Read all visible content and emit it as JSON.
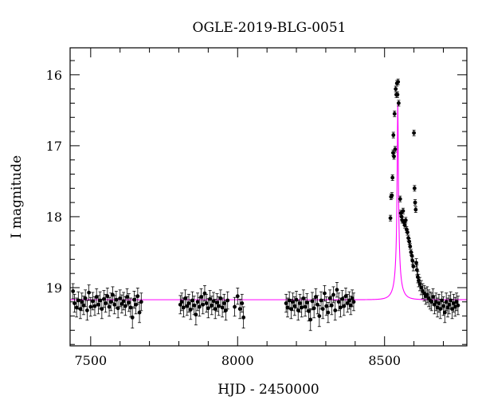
{
  "chart_data": {
    "type": "scatter",
    "title": "OGLE-2019-BLG-0051",
    "xlabel": "HJD - 2450000",
    "ylabel": "I magnitude",
    "xlim": [
      7430,
      8780
    ],
    "ylim": [
      15.62,
      19.82
    ],
    "y_inverted": true,
    "x_ticks": [
      7500,
      8000,
      8500
    ],
    "y_ticks": [
      16,
      17,
      18,
      19
    ],
    "grid": false,
    "model_color": "#ff00ff",
    "point_color": "#000000",
    "model": {
      "baseline_mag": 19.17,
      "peak_mag": 16.4,
      "t0": 8545,
      "tE": 27,
      "u0": 0.0709
    },
    "observations": [
      {
        "t": 7440,
        "mag": 19.05
      },
      {
        "t": 7445,
        "mag": 19.22
      },
      {
        "t": 7452,
        "mag": 19.28
      },
      {
        "t": 7458,
        "mag": 19.18
      },
      {
        "t": 7465,
        "mag": 19.3
      },
      {
        "t": 7470,
        "mag": 19.2
      },
      {
        "t": 7476,
        "mag": 19.25
      },
      {
        "t": 7482,
        "mag": 19.15
      },
      {
        "t": 7488,
        "mag": 19.32
      },
      {
        "t": 7494,
        "mag": 19.07
      },
      {
        "t": 7500,
        "mag": 19.27
      },
      {
        "t": 7507,
        "mag": 19.19
      },
      {
        "t": 7514,
        "mag": 19.26
      },
      {
        "t": 7520,
        "mag": 19.13
      },
      {
        "t": 7526,
        "mag": 19.24
      },
      {
        "t": 7532,
        "mag": 19.18
      },
      {
        "t": 7538,
        "mag": 19.3
      },
      {
        "t": 7545,
        "mag": 19.16
      },
      {
        "t": 7551,
        "mag": 19.22
      },
      {
        "t": 7557,
        "mag": 19.12
      },
      {
        "t": 7563,
        "mag": 19.27
      },
      {
        "t": 7569,
        "mag": 19.2
      },
      {
        "t": 7575,
        "mag": 19.1
      },
      {
        "t": 7581,
        "mag": 19.24
      },
      {
        "t": 7587,
        "mag": 19.17
      },
      {
        "t": 7593,
        "mag": 19.29
      },
      {
        "t": 7600,
        "mag": 19.15
      },
      {
        "t": 7606,
        "mag": 19.23
      },
      {
        "t": 7612,
        "mag": 19.19
      },
      {
        "t": 7618,
        "mag": 19.26
      },
      {
        "t": 7624,
        "mag": 19.13
      },
      {
        "t": 7630,
        "mag": 19.21
      },
      {
        "t": 7636,
        "mag": 19.28
      },
      {
        "t": 7642,
        "mag": 19.42
      },
      {
        "t": 7648,
        "mag": 19.17
      },
      {
        "t": 7654,
        "mag": 19.24
      },
      {
        "t": 7660,
        "mag": 19.12
      },
      {
        "t": 7666,
        "mag": 19.35
      },
      {
        "t": 7672,
        "mag": 19.2
      },
      {
        "t": 7805,
        "mag": 19.24
      },
      {
        "t": 7810,
        "mag": 19.2
      },
      {
        "t": 7816,
        "mag": 19.28
      },
      {
        "t": 7822,
        "mag": 19.15
      },
      {
        "t": 7828,
        "mag": 19.26
      },
      {
        "t": 7834,
        "mag": 19.22
      },
      {
        "t": 7840,
        "mag": 19.31
      },
      {
        "t": 7846,
        "mag": 19.18
      },
      {
        "t": 7852,
        "mag": 19.25
      },
      {
        "t": 7858,
        "mag": 19.38
      },
      {
        "t": 7864,
        "mag": 19.2
      },
      {
        "t": 7870,
        "mag": 19.27
      },
      {
        "t": 7876,
        "mag": 19.13
      },
      {
        "t": 7882,
        "mag": 19.24
      },
      {
        "t": 7888,
        "mag": 19.08
      },
      {
        "t": 7894,
        "mag": 19.22
      },
      {
        "t": 7900,
        "mag": 19.29
      },
      {
        "t": 7906,
        "mag": 19.16
      },
      {
        "t": 7912,
        "mag": 19.25
      },
      {
        "t": 7918,
        "mag": 19.19
      },
      {
        "t": 7924,
        "mag": 19.3
      },
      {
        "t": 7930,
        "mag": 19.21
      },
      {
        "t": 7936,
        "mag": 19.26
      },
      {
        "t": 7942,
        "mag": 19.15
      },
      {
        "t": 7948,
        "mag": 19.28
      },
      {
        "t": 7954,
        "mag": 19.22
      },
      {
        "t": 7960,
        "mag": 19.32
      },
      {
        "t": 7966,
        "mag": 19.18
      },
      {
        "t": 7990,
        "mag": 19.27
      },
      {
        "t": 8000,
        "mag": 19.12
      },
      {
        "t": 8008,
        "mag": 19.3
      },
      {
        "t": 8015,
        "mag": 19.22
      },
      {
        "t": 8020,
        "mag": 19.42
      },
      {
        "t": 8165,
        "mag": 19.22
      },
      {
        "t": 8170,
        "mag": 19.28
      },
      {
        "t": 8176,
        "mag": 19.18
      },
      {
        "t": 8182,
        "mag": 19.3
      },
      {
        "t": 8188,
        "mag": 19.2
      },
      {
        "t": 8194,
        "mag": 19.26
      },
      {
        "t": 8200,
        "mag": 19.17
      },
      {
        "t": 8206,
        "mag": 19.32
      },
      {
        "t": 8212,
        "mag": 19.22
      },
      {
        "t": 8218,
        "mag": 19.28
      },
      {
        "t": 8224,
        "mag": 19.15
      },
      {
        "t": 8230,
        "mag": 19.27
      },
      {
        "t": 8236,
        "mag": 19.21
      },
      {
        "t": 8242,
        "mag": 19.33
      },
      {
        "t": 8248,
        "mag": 19.45
      },
      {
        "t": 8254,
        "mag": 19.19
      },
      {
        "t": 8260,
        "mag": 19.29
      },
      {
        "t": 8266,
        "mag": 19.13
      },
      {
        "t": 8272,
        "mag": 19.24
      },
      {
        "t": 8278,
        "mag": 19.4
      },
      {
        "t": 8284,
        "mag": 19.18
      },
      {
        "t": 8290,
        "mag": 19.3
      },
      {
        "t": 8296,
        "mag": 19.08
      },
      {
        "t": 8302,
        "mag": 19.26
      },
      {
        "t": 8308,
        "mag": 19.35
      },
      {
        "t": 8314,
        "mag": 19.15
      },
      {
        "t": 8320,
        "mag": 19.25
      },
      {
        "t": 8326,
        "mag": 19.1
      },
      {
        "t": 8332,
        "mag": 19.32
      },
      {
        "t": 8338,
        "mag": 19.03
      },
      {
        "t": 8344,
        "mag": 19.2
      },
      {
        "t": 8350,
        "mag": 19.28
      },
      {
        "t": 8356,
        "mag": 19.16
      },
      {
        "t": 8362,
        "mag": 19.26
      },
      {
        "t": 8368,
        "mag": 19.12
      },
      {
        "t": 8374,
        "mag": 19.22
      },
      {
        "t": 8380,
        "mag": 19.18
      },
      {
        "t": 8385,
        "mag": 19.25
      },
      {
        "t": 8390,
        "mag": 19.15
      },
      {
        "t": 8395,
        "mag": 19.2
      },
      {
        "t": 8520,
        "mag": 18.02
      },
      {
        "t": 8522,
        "mag": 17.72
      },
      {
        "t": 8525,
        "mag": 17.7
      },
      {
        "t": 8527,
        "mag": 17.45
      },
      {
        "t": 8529,
        "mag": 17.1
      },
      {
        "t": 8530,
        "mag": 16.85
      },
      {
        "t": 8532,
        "mag": 17.15
      },
      {
        "t": 8534,
        "mag": 16.55
      },
      {
        "t": 8536,
        "mag": 17.05
      },
      {
        "t": 8538,
        "mag": 16.2
      },
      {
        "t": 8540,
        "mag": 16.28
      },
      {
        "t": 8542,
        "mag": 16.12
      },
      {
        "t": 8544,
        "mag": 16.28
      },
      {
        "t": 8546,
        "mag": 16.1
      },
      {
        "t": 8548,
        "mag": 16.4
      },
      {
        "t": 8553,
        "mag": 17.75
      },
      {
        "t": 8555,
        "mag": 17.95
      },
      {
        "t": 8558,
        "mag": 18.0
      },
      {
        "t": 8560,
        "mag": 18.05
      },
      {
        "t": 8563,
        "mag": 17.92
      },
      {
        "t": 8566,
        "mag": 18.08
      },
      {
        "t": 8569,
        "mag": 18.12
      },
      {
        "t": 8572,
        "mag": 18.05
      },
      {
        "t": 8575,
        "mag": 18.18
      },
      {
        "t": 8578,
        "mag": 18.22
      },
      {
        "t": 8581,
        "mag": 18.3
      },
      {
        "t": 8584,
        "mag": 18.35
      },
      {
        "t": 8587,
        "mag": 18.42
      },
      {
        "t": 8590,
        "mag": 18.5
      },
      {
        "t": 8593,
        "mag": 18.55
      },
      {
        "t": 8595,
        "mag": 18.62
      },
      {
        "t": 8598,
        "mag": 18.7
      },
      {
        "t": 8600,
        "mag": 16.82
      },
      {
        "t": 8602,
        "mag": 17.6
      },
      {
        "t": 8604,
        "mag": 17.8
      },
      {
        "t": 8606,
        "mag": 17.9
      },
      {
        "t": 8608,
        "mag": 18.65
      },
      {
        "t": 8610,
        "mag": 18.75
      },
      {
        "t": 8613,
        "mag": 18.85
      },
      {
        "t": 8616,
        "mag": 18.9
      },
      {
        "t": 8620,
        "mag": 18.95
      },
      {
        "t": 8625,
        "mag": 19.0
      },
      {
        "t": 8630,
        "mag": 19.05
      },
      {
        "t": 8635,
        "mag": 19.08
      },
      {
        "t": 8640,
        "mag": 19.12
      },
      {
        "t": 8645,
        "mag": 19.1
      },
      {
        "t": 8650,
        "mag": 19.15
      },
      {
        "t": 8655,
        "mag": 19.18
      },
      {
        "t": 8660,
        "mag": 19.2
      },
      {
        "t": 8665,
        "mag": 19.13
      },
      {
        "t": 8670,
        "mag": 19.24
      },
      {
        "t": 8675,
        "mag": 19.2
      },
      {
        "t": 8680,
        "mag": 19.28
      },
      {
        "t": 8685,
        "mag": 19.22
      },
      {
        "t": 8690,
        "mag": 19.3
      },
      {
        "t": 8695,
        "mag": 19.18
      },
      {
        "t": 8700,
        "mag": 19.26
      },
      {
        "t": 8705,
        "mag": 19.35
      },
      {
        "t": 8710,
        "mag": 19.2
      },
      {
        "t": 8715,
        "mag": 19.28
      },
      {
        "t": 8720,
        "mag": 19.24
      },
      {
        "t": 8725,
        "mag": 19.18
      },
      {
        "t": 8730,
        "mag": 19.3
      },
      {
        "t": 8735,
        "mag": 19.22
      },
      {
        "t": 8740,
        "mag": 19.27
      },
      {
        "t": 8745,
        "mag": 19.2
      },
      {
        "t": 8750,
        "mag": 19.25
      }
    ]
  }
}
